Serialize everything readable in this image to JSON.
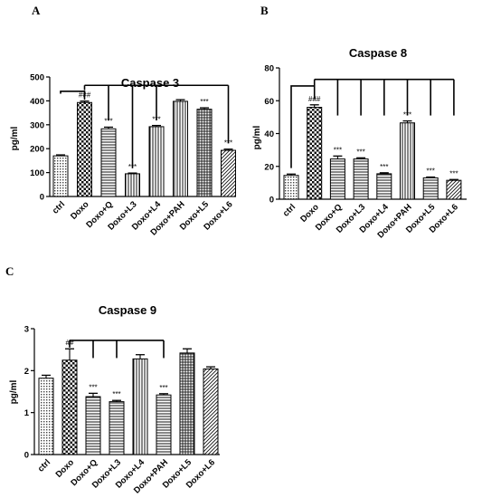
{
  "chart_data": [
    {
      "panel": "A",
      "type": "bar",
      "title": "Caspase 3",
      "ylabel": "pg/ml",
      "xlabel": "",
      "ylim": [
        0,
        500
      ],
      "yticks": [
        "0",
        "100",
        "200",
        "300",
        "400",
        "500"
      ],
      "categories": [
        "ctrl",
        "Doxo",
        "Doxo+Q",
        "Doxo+L3",
        "Doxo+L4",
        "Doxo+PAH",
        "Doxo+L5",
        "Doxo+L6"
      ],
      "values": [
        170,
        393,
        283,
        95,
        292,
        398,
        365,
        193
      ],
      "errors": [
        4,
        6,
        7,
        3,
        5,
        7,
        6,
        5
      ],
      "annotations": [
        "",
        "###",
        "***",
        "***",
        "***",
        "",
        "***",
        "***"
      ],
      "patterns": [
        "dots",
        "checker",
        "hlines",
        "vlines",
        "vlines",
        "vlines",
        "grid",
        "diag"
      ],
      "grid": false
    },
    {
      "panel": "B",
      "type": "bar",
      "title": "Caspase 8",
      "ylabel": "pg/ml",
      "xlabel": "",
      "ylim": [
        0,
        80
      ],
      "yticks": [
        "0",
        "20",
        "40",
        "60",
        "80"
      ],
      "categories": [
        "ctrl",
        "Doxo",
        "Doxo+Q",
        "Doxo+L3",
        "Doxo+L4",
        "Doxo+PAH",
        "Doxo+L5",
        "Doxo+L6"
      ],
      "values": [
        14.5,
        56,
        24.5,
        24.5,
        15.5,
        46.5,
        13,
        11.5
      ],
      "errors": [
        0.8,
        1.5,
        1.8,
        0.7,
        0.6,
        1.2,
        0.5,
        0.5
      ],
      "annotations": [
        "",
        "###",
        "***",
        "***",
        "***",
        "***",
        "***",
        "***"
      ],
      "patterns": [
        "dots",
        "checker",
        "hlines",
        "hlines",
        "hlines",
        "vlines",
        "hlines",
        "diag"
      ],
      "grid": false
    },
    {
      "panel": "C",
      "type": "bar",
      "title": "Caspase 9",
      "ylabel": "pg/ml",
      "xlabel": "",
      "ylim": [
        0,
        3
      ],
      "yticks": [
        "0",
        "1",
        "2",
        "3"
      ],
      "categories": [
        "ctrl",
        "Doxo",
        "Doxo+Q",
        "Doxo+L3",
        "Doxo+L4",
        "Doxo+PAH",
        "Doxo+L5",
        "Doxo+L6"
      ],
      "values": [
        1.82,
        2.25,
        1.38,
        1.26,
        2.28,
        1.42,
        2.42,
        2.04
      ],
      "errors": [
        0.07,
        0.27,
        0.08,
        0.03,
        0.1,
        0.03,
        0.1,
        0.05
      ],
      "annotations": [
        "",
        "##",
        "***",
        "***",
        "",
        "***",
        "",
        ""
      ],
      "patterns": [
        "dots",
        "checker",
        "hlines",
        "hlines",
        "vlines",
        "hlines",
        "grid",
        "diag"
      ],
      "grid": false
    }
  ]
}
